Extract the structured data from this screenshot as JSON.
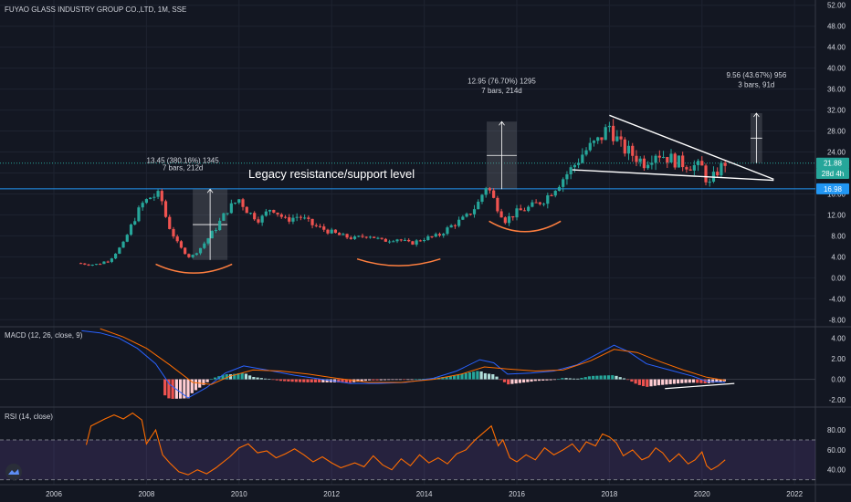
{
  "header": {
    "title": "FUYAO GLASS INDUSTRY GROUP CO.,LTD, 1M, SSE"
  },
  "colors": {
    "background": "#131722",
    "up": "#26a69a",
    "down": "#ef5350",
    "grid": "#1e2330",
    "macd_line": "#2962ff",
    "signal_line": "#ff6d00",
    "rsi_line": "#ff6d00",
    "rsi_band": "#7e57c2",
    "level": "#2196f3",
    "arc": "#ff7f3f"
  },
  "chart_data": [
    {
      "type": "candlestick",
      "title": "FUYAO GLASS INDUSTRY GROUP CO.,LTD, 1M, SSE",
      "x_ticks": [
        "2006",
        "2008",
        "2010",
        "2012",
        "2014",
        "2016",
        "2018",
        "2020",
        "2022"
      ],
      "y_ticks": [
        "52.00",
        "48.00",
        "44.00",
        "40.00",
        "36.00",
        "32.00",
        "28.00",
        "24.00",
        "20.00",
        "16.00",
        "12.00",
        "8.00",
        "4.00",
        "0.00",
        "-4.00",
        "-8.00"
      ],
      "ylim": [
        -9,
        53
      ],
      "close_series": [
        [
          2006.5,
          2.8
        ],
        [
          2006.9,
          2.5
        ],
        [
          2007.2,
          3.4
        ],
        [
          2007.5,
          6.5
        ],
        [
          2007.7,
          10.5
        ],
        [
          2007.9,
          14.0
        ],
        [
          2008.1,
          15.5
        ],
        [
          2008.3,
          15.8
        ],
        [
          2008.45,
          10.5
        ],
        [
          2008.7,
          6.0
        ],
        [
          2008.95,
          3.8
        ],
        [
          2009.2,
          6.0
        ],
        [
          2009.5,
          9.5
        ],
        [
          2009.75,
          13.0
        ],
        [
          2010.0,
          15.0
        ],
        [
          2010.2,
          12.5
        ],
        [
          2010.45,
          11.0
        ],
        [
          2010.7,
          13.5
        ],
        [
          2011.0,
          11.0
        ],
        [
          2011.3,
          11.8
        ],
        [
          2011.6,
          10.0
        ],
        [
          2011.9,
          9.0
        ],
        [
          2012.2,
          8.0
        ],
        [
          2012.5,
          7.5
        ],
        [
          2012.8,
          8.2
        ],
        [
          2013.1,
          7.0
        ],
        [
          2013.4,
          7.5
        ],
        [
          2013.7,
          6.5
        ],
        [
          2014.0,
          7.5
        ],
        [
          2014.3,
          8.0
        ],
        [
          2014.6,
          10.0
        ],
        [
          2014.9,
          11.5
        ],
        [
          2015.15,
          14.0
        ],
        [
          2015.35,
          17.8
        ],
        [
          2015.55,
          14.0
        ],
        [
          2015.75,
          11.0
        ],
        [
          2016.0,
          12.5
        ],
        [
          2016.3,
          13.5
        ],
        [
          2016.6,
          15.0
        ],
        [
          2016.9,
          18.0
        ],
        [
          2017.2,
          21.0
        ],
        [
          2017.45,
          24.0
        ],
        [
          2017.75,
          26.0
        ],
        [
          2018.0,
          29.0
        ],
        [
          2018.25,
          25.0
        ],
        [
          2018.5,
          23.5
        ],
        [
          2018.75,
          22.0
        ],
        [
          2019.0,
          24.0
        ],
        [
          2019.25,
          23.0
        ],
        [
          2019.5,
          22.0
        ],
        [
          2019.75,
          21.5
        ],
        [
          2020.0,
          21.0
        ],
        [
          2020.15,
          17.5
        ],
        [
          2020.3,
          20.0
        ],
        [
          2020.5,
          22.0
        ]
      ],
      "annotations": [
        {
          "text": "Legacy resistance/support level",
          "value": 16.98
        },
        {
          "text": "13.45 (380.16%) 1345",
          "subtext": "7 bars, 212d"
        },
        {
          "text": "12.95 (76.70%) 1295",
          "subtext": "7 bars, 214d"
        },
        {
          "text": "9.56 (43.67%) 956",
          "subtext": "3 bars, 91d"
        }
      ],
      "price_labels": [
        {
          "text": "21.88",
          "value": 21.88,
          "color": "#26a69a"
        },
        {
          "text": "28d 4h",
          "value": 19.9,
          "color": "#26a69a"
        },
        {
          "text": "16.98",
          "value": 16.98,
          "color": "#2196f3"
        }
      ]
    },
    {
      "type": "histogram+line",
      "title": "MACD (12, 26, close, 9)",
      "y_ticks": [
        "4.00",
        "2.00",
        "0.00",
        "-2.00"
      ],
      "ylim": [
        -2.6,
        5.0
      ],
      "macd": [
        [
          2006.6,
          4.7
        ],
        [
          2007.0,
          4.5
        ],
        [
          2007.4,
          4.0
        ],
        [
          2007.8,
          3.0
        ],
        [
          2008.2,
          1.5
        ],
        [
          2008.5,
          -0.5
        ],
        [
          2008.9,
          -1.8
        ],
        [
          2009.3,
          -0.8
        ],
        [
          2009.7,
          0.6
        ],
        [
          2010.1,
          1.3
        ],
        [
          2010.6,
          0.9
        ],
        [
          2011.2,
          0.4
        ],
        [
          2011.8,
          0.0
        ],
        [
          2012.4,
          -0.4
        ],
        [
          2013.0,
          -0.4
        ],
        [
          2013.6,
          -0.3
        ],
        [
          2014.2,
          0.1
        ],
        [
          2014.7,
          0.8
        ],
        [
          2015.2,
          1.9
        ],
        [
          2015.5,
          1.6
        ],
        [
          2015.8,
          0.5
        ],
        [
          2016.3,
          0.6
        ],
        [
          2016.8,
          0.8
        ],
        [
          2017.3,
          1.4
        ],
        [
          2017.8,
          2.6
        ],
        [
          2018.1,
          3.3
        ],
        [
          2018.4,
          2.7
        ],
        [
          2018.8,
          1.5
        ],
        [
          2019.3,
          0.9
        ],
        [
          2019.8,
          0.3
        ],
        [
          2020.1,
          -0.2
        ],
        [
          2020.5,
          -0.3
        ]
      ],
      "signal": [
        [
          2007.0,
          4.9
        ],
        [
          2007.5,
          4.1
        ],
        [
          2008.0,
          3.0
        ],
        [
          2008.5,
          1.4
        ],
        [
          2009.0,
          -0.3
        ],
        [
          2009.4,
          -0.5
        ],
        [
          2009.8,
          0.3
        ],
        [
          2010.3,
          0.9
        ],
        [
          2010.9,
          0.8
        ],
        [
          2011.5,
          0.5
        ],
        [
          2012.1,
          0.1
        ],
        [
          2012.8,
          -0.3
        ],
        [
          2013.5,
          -0.3
        ],
        [
          2014.2,
          0.0
        ],
        [
          2014.8,
          0.5
        ],
        [
          2015.3,
          1.2
        ],
        [
          2015.8,
          1.0
        ],
        [
          2016.4,
          0.8
        ],
        [
          2017.0,
          0.9
        ],
        [
          2017.6,
          1.8
        ],
        [
          2018.1,
          2.9
        ],
        [
          2018.6,
          2.6
        ],
        [
          2019.1,
          1.7
        ],
        [
          2019.6,
          0.9
        ],
        [
          2020.1,
          0.2
        ],
        [
          2020.5,
          -0.1
        ]
      ]
    },
    {
      "type": "line",
      "title": "RSI (14, close)",
      "y_ticks": [
        "80.00",
        "60.00",
        "40.00"
      ],
      "ylim": [
        26,
        102
      ],
      "upper": 70,
      "lower": 30,
      "values": [
        [
          2006.7,
          65
        ],
        [
          2006.8,
          84
        ],
        [
          2007.1,
          91
        ],
        [
          2007.3,
          95
        ],
        [
          2007.5,
          91
        ],
        [
          2007.7,
          97
        ],
        [
          2007.9,
          90
        ],
        [
          2008.0,
          66
        ],
        [
          2008.2,
          80
        ],
        [
          2008.35,
          55
        ],
        [
          2008.5,
          47
        ],
        [
          2008.7,
          38
        ],
        [
          2008.9,
          35
        ],
        [
          2009.1,
          40
        ],
        [
          2009.3,
          36
        ],
        [
          2009.5,
          42
        ],
        [
          2009.8,
          53
        ],
        [
          2010.0,
          62
        ],
        [
          2010.2,
          66
        ],
        [
          2010.4,
          57
        ],
        [
          2010.6,
          59
        ],
        [
          2010.8,
          52
        ],
        [
          2011.0,
          56
        ],
        [
          2011.2,
          61
        ],
        [
          2011.4,
          55
        ],
        [
          2011.6,
          48
        ],
        [
          2011.8,
          53
        ],
        [
          2012.0,
          47
        ],
        [
          2012.2,
          42
        ],
        [
          2012.5,
          47
        ],
        [
          2012.7,
          43
        ],
        [
          2012.9,
          54
        ],
        [
          2013.1,
          45
        ],
        [
          2013.3,
          40
        ],
        [
          2013.5,
          51
        ],
        [
          2013.7,
          44
        ],
        [
          2013.9,
          55
        ],
        [
          2014.1,
          47
        ],
        [
          2014.3,
          52
        ],
        [
          2014.5,
          46
        ],
        [
          2014.7,
          56
        ],
        [
          2014.9,
          60
        ],
        [
          2015.1,
          70
        ],
        [
          2015.3,
          78
        ],
        [
          2015.45,
          84
        ],
        [
          2015.6,
          64
        ],
        [
          2015.7,
          70
        ],
        [
          2015.85,
          52
        ],
        [
          2016.0,
          48
        ],
        [
          2016.2,
          55
        ],
        [
          2016.4,
          50
        ],
        [
          2016.6,
          62
        ],
        [
          2016.8,
          55
        ],
        [
          2017.0,
          60
        ],
        [
          2017.2,
          66
        ],
        [
          2017.35,
          58
        ],
        [
          2017.5,
          68
        ],
        [
          2017.7,
          64
        ],
        [
          2017.85,
          76
        ],
        [
          2018.0,
          73
        ],
        [
          2018.15,
          67
        ],
        [
          2018.3,
          54
        ],
        [
          2018.5,
          60
        ],
        [
          2018.7,
          50
        ],
        [
          2018.85,
          53
        ],
        [
          2019.0,
          62
        ],
        [
          2019.15,
          57
        ],
        [
          2019.3,
          48
        ],
        [
          2019.5,
          56
        ],
        [
          2019.7,
          46
        ],
        [
          2019.85,
          50
        ],
        [
          2020.0,
          58
        ],
        [
          2020.1,
          44
        ],
        [
          2020.2,
          40
        ],
        [
          2020.35,
          44
        ],
        [
          2020.5,
          50
        ]
      ]
    }
  ]
}
